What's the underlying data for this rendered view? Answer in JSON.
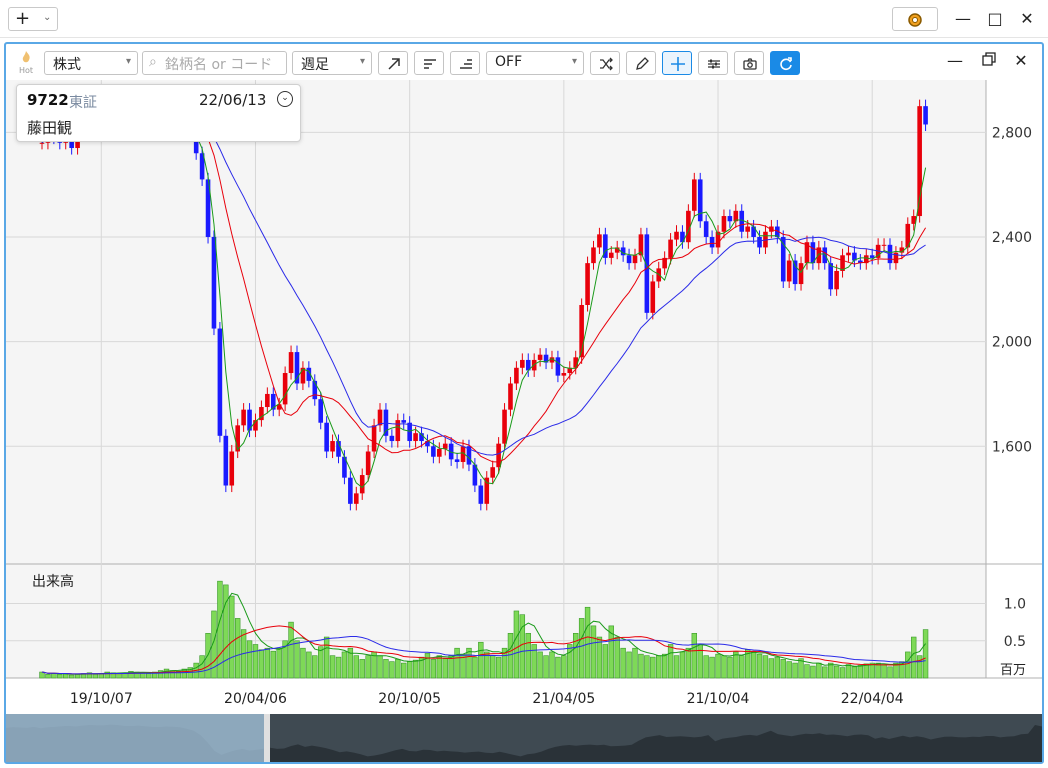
{
  "titlebar": {
    "add_label": "+",
    "close": "✕",
    "maximize": "□",
    "minimize": "—"
  },
  "toolbar": {
    "hot_label": "Hot",
    "market_select": "株式",
    "search_placeholder": "銘柄名 or コード",
    "period_select": "週足",
    "indicator_select": "OFF"
  },
  "info": {
    "code": "9722",
    "exchange": "東証",
    "date": "22/06/13",
    "name": "藤田観"
  },
  "colors": {
    "up": "#e8000b",
    "down": "#1a1aff",
    "ma_short": "#1a9a1a",
    "ma_mid": "#e8000b",
    "ma_long": "#2a2ae8",
    "volume": "#7ed957",
    "accent": "#1a8ae6"
  },
  "chart_data": {
    "type": "candlestick",
    "price_axis": {
      "ticks": [
        1600,
        2000,
        2400,
        2800
      ],
      "tick_labels": [
        "1,600",
        "2,000",
        "2,400",
        "2,800"
      ],
      "ylim": [
        1150,
        3000
      ]
    },
    "volume_axis": {
      "title": "出来高",
      "ticks": [
        0.5,
        1.0
      ],
      "tick_labels": [
        "0.5",
        "1.0"
      ],
      "unit": "百万",
      "ylim": [
        0,
        1.45
      ]
    },
    "x_labels": [
      "19/10/07",
      "20/04/06",
      "20/10/05",
      "21/04/05",
      "21/10/04",
      "22/04/04"
    ],
    "x_label_index": [
      10,
      36,
      62,
      88,
      114,
      140
    ],
    "grid": true,
    "series": [
      {
        "name": "close",
        "values": [
          2760,
          2800,
          2780,
          2760,
          2810,
          2740,
          2790,
          2810,
          2840,
          2860,
          2830,
          2870,
          2900,
          2890,
          2880,
          2920,
          2900,
          2860,
          2850,
          2870,
          2840,
          2810,
          2800,
          2830,
          2820,
          2790,
          2720,
          2620,
          2400,
          2050,
          1640,
          1450,
          1580,
          1680,
          1740,
          1660,
          1700,
          1750,
          1800,
          1740,
          1760,
          1880,
          1960,
          1840,
          1900,
          1850,
          1780,
          1690,
          1580,
          1620,
          1560,
          1480,
          1380,
          1420,
          1490,
          1580,
          1680,
          1740,
          1640,
          1620,
          1700,
          1690,
          1620,
          1650,
          1620,
          1600,
          1560,
          1590,
          1610,
          1550,
          1540,
          1600,
          1530,
          1450,
          1380,
          1480,
          1520,
          1610,
          1740,
          1840,
          1900,
          1930,
          1890,
          1930,
          1950,
          1920,
          1940,
          1870,
          1880,
          1900,
          1940,
          2140,
          2300,
          2360,
          2410,
          2320,
          2340,
          2360,
          2330,
          2300,
          2330,
          2410,
          2110,
          2230,
          2280,
          2320,
          2390,
          2420,
          2380,
          2500,
          2620,
          2460,
          2400,
          2360,
          2420,
          2480,
          2460,
          2500,
          2420,
          2440,
          2400,
          2360,
          2420,
          2440,
          2400,
          2230,
          2310,
          2220,
          2300,
          2380,
          2300,
          2360,
          2300,
          2200,
          2270,
          2330,
          2340,
          2310,
          2300,
          2330,
          2320,
          2370,
          2370,
          2300,
          2340,
          2360,
          2450,
          2480,
          2900,
          2830
        ]
      }
    ],
    "volume": [
      0.08,
      0.05,
      0.06,
      0.05,
      0.06,
      0.04,
      0.05,
      0.06,
      0.07,
      0.05,
      0.06,
      0.08,
      0.07,
      0.06,
      0.07,
      0.09,
      0.08,
      0.07,
      0.06,
      0.08,
      0.1,
      0.12,
      0.1,
      0.09,
      0.12,
      0.14,
      0.2,
      0.3,
      0.6,
      0.9,
      1.3,
      1.25,
      1.1,
      0.8,
      0.65,
      0.5,
      0.45,
      0.38,
      0.4,
      0.36,
      0.4,
      0.5,
      0.75,
      0.5,
      0.4,
      0.35,
      0.3,
      0.42,
      0.55,
      0.3,
      0.28,
      0.35,
      0.4,
      0.3,
      0.25,
      0.3,
      0.35,
      0.3,
      0.25,
      0.22,
      0.25,
      0.2,
      0.22,
      0.24,
      0.28,
      0.33,
      0.25,
      0.3,
      0.26,
      0.3,
      0.4,
      0.32,
      0.4,
      0.28,
      0.48,
      0.35,
      0.3,
      0.28,
      0.4,
      0.6,
      0.9,
      0.85,
      0.6,
      0.45,
      0.35,
      0.3,
      0.35,
      0.28,
      0.3,
      0.45,
      0.6,
      0.8,
      0.95,
      0.7,
      0.55,
      0.45,
      0.7,
      0.55,
      0.4,
      0.35,
      0.4,
      0.32,
      0.3,
      0.28,
      0.3,
      0.32,
      0.45,
      0.3,
      0.35,
      0.4,
      0.6,
      0.45,
      0.3,
      0.28,
      0.32,
      0.3,
      0.28,
      0.35,
      0.3,
      0.38,
      0.35,
      0.32,
      0.3,
      0.26,
      0.28,
      0.25,
      0.22,
      0.2,
      0.26,
      0.18,
      0.16,
      0.2,
      0.15,
      0.2,
      0.16,
      0.14,
      0.18,
      0.15,
      0.17,
      0.19,
      0.2,
      0.2,
      0.18,
      0.15,
      0.2,
      0.22,
      0.35,
      0.55,
      0.3,
      0.65
    ]
  }
}
